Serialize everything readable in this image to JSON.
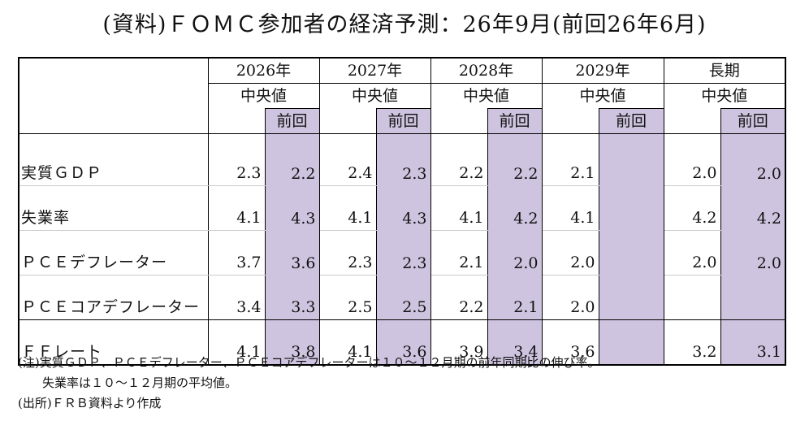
{
  "title": "(資料)ＦＯＭＣ参加者の経済予測：26年9月(前回26年6月)",
  "years": [
    "2026年",
    "2027年",
    "2028年",
    "2029年",
    "長期"
  ],
  "sub_median": "中央値",
  "sub_prev": "前回",
  "rows": [
    {
      "label": "実質ＧＤＰ",
      "values": [
        "2.3",
        "2.2",
        "2.4",
        "2.3",
        "2.2",
        "2.2",
        "2.1",
        "",
        "2.0",
        "2.0"
      ]
    },
    {
      "label": "失業率",
      "values": [
        "4.1",
        "4.3",
        "4.1",
        "4.3",
        "4.1",
        "4.2",
        "4.1",
        "",
        "4.2",
        "4.2"
      ]
    },
    {
      "label": "ＰＣＥデフレーター",
      "values": [
        "3.7",
        "3.6",
        "2.3",
        "2.3",
        "2.1",
        "2.0",
        "2.0",
        "",
        "2.0",
        "2.0"
      ]
    },
    {
      "label": "ＰＣＥコアデフレーター",
      "values": [
        "3.4",
        "3.3",
        "2.5",
        "2.5",
        "2.2",
        "2.1",
        "2.0",
        "",
        "",
        ""
      ]
    },
    {
      "label": "ＦＦレート",
      "values": [
        "4.1",
        "3.8",
        "4.1",
        "3.6",
        "3.9",
        "3.4",
        "3.6",
        "",
        "3.2",
        "3.1"
      ]
    }
  ],
  "notes": {
    "line1": "(注)実質ＧＤＰ、ＰＣＥデフレーター、ＰＣＥコアデフレーターは１０～１２月期の前年同期比の伸び率。",
    "line2": "失業率は１０～１２月期の平均値。",
    "line3": "(出所)ＦＲＢ資料より作成"
  },
  "colors": {
    "prev_highlight": "#cfc4e0"
  }
}
